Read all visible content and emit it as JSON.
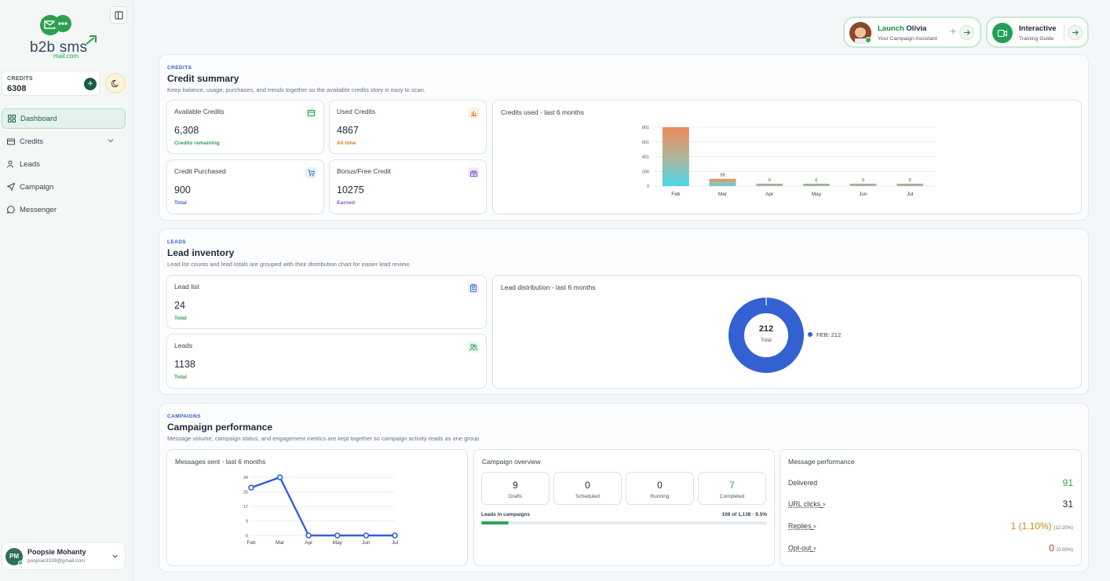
{
  "brand": {
    "name": "b2b sms",
    "sub": "mail.com"
  },
  "sidebar": {
    "credits_label": "CREDITS",
    "credits_value": "6308",
    "items": [
      {
        "label": "Dashboard",
        "icon": "grid-icon"
      },
      {
        "label": "Credits",
        "icon": "wallet-icon"
      },
      {
        "label": "Leads",
        "icon": "users-icon"
      },
      {
        "label": "Campaign",
        "icon": "send-icon"
      },
      {
        "label": "Messenger",
        "icon": "chat-icon"
      }
    ],
    "user": {
      "initials": "PM",
      "name": "Poopsie Mohanty",
      "email": "poopsie3339@gmail.com"
    }
  },
  "topbar": {
    "launch_prefix": "Launch",
    "launch_name": "Olivia",
    "launch_sub": "Your Campaign Assistant",
    "interactive_title": "Interactive",
    "interactive_sub": "Training Guide"
  },
  "credits_section": {
    "tag": "CREDITS",
    "title": "Credit summary",
    "desc": "Keep balance, usage, purchases, and trends together so the available credits story is easy to scan.",
    "cards": {
      "available": {
        "label": "Available Credits",
        "value": "6,308",
        "sub": "Credits remaining"
      },
      "used": {
        "label": "Used Credits",
        "value": "4867",
        "sub": "All time"
      },
      "purchased": {
        "label": "Credit Purchased",
        "value": "900",
        "sub": "Total"
      },
      "bonus": {
        "label": "Bonus/Free Credit",
        "value": "10275",
        "sub": "Earned"
      }
    },
    "chart_title": "Credits used - last 6 months"
  },
  "leads_section": {
    "tag": "LEADS",
    "title": "Lead inventory",
    "desc": "Lead list counts and lead totals are grouped with their distribution chart for easier lead review.",
    "cards": {
      "lead_list": {
        "label": "Lead list",
        "value": "24",
        "sub": "Total"
      },
      "leads": {
        "label": "Leads",
        "value": "1138",
        "sub": "Total"
      }
    },
    "chart_title": "Lead distribution - last 6 months",
    "donut_total": "212",
    "donut_total_label": "Total",
    "legend": "FEB: 212"
  },
  "campaigns_section": {
    "tag": "CAMPAIGNS",
    "title": "Campaign performance",
    "desc": "Message volume, campaign status, and engagement metrics are kept together so campaign activity reads as one group.",
    "messages_title": "Messages sent - last 6 months",
    "overview": {
      "title": "Campaign overview",
      "boxes": [
        {
          "value": "9",
          "label": "Drafts"
        },
        {
          "value": "0",
          "label": "Scheduled"
        },
        {
          "value": "0",
          "label": "Running"
        },
        {
          "value": "7",
          "label": "Completed"
        }
      ],
      "leads_label": "Leads in campaigns",
      "leads_value": "108 of 1,138 · 9.5%",
      "progress": 0.095
    },
    "performance": {
      "title": "Message performance",
      "rows": [
        {
          "label": "Delivered",
          "value": "91",
          "pct": ""
        },
        {
          "label": "URL clicks",
          "value": "31",
          "pct": ""
        },
        {
          "label": "Replies",
          "value": "1 (1.10%)",
          "pct": "(12.20%)"
        },
        {
          "label": "Opt-out",
          "value": "0",
          "pct": "(0.00%)"
        }
      ]
    }
  },
  "chart_data": [
    {
      "type": "bar",
      "title": "Credits used - last 6 months",
      "categories": [
        "Feb",
        "Mar",
        "Apr",
        "May",
        "Jun",
        "Jul"
      ],
      "values": [
        801,
        99,
        0,
        0,
        0,
        0
      ],
      "value_labels": [
        "",
        "99",
        "0",
        "0",
        "0",
        "0"
      ],
      "yticks": [
        "801",
        "601",
        "401",
        "200",
        "0"
      ],
      "ylim": [
        0,
        801
      ]
    },
    {
      "type": "pie",
      "title": "Lead distribution - last 6 months",
      "labels": [
        "FEB"
      ],
      "values": [
        212
      ]
    },
    {
      "type": "line",
      "title": "Messages sent - last 6 months",
      "categories": [
        "Feb",
        "Mar",
        "Apr",
        "May",
        "Jun",
        "Jul"
      ],
      "values": [
        28,
        34,
        0,
        0,
        0,
        0
      ],
      "yticks": [
        "34",
        "26",
        "17",
        "9",
        "0"
      ],
      "ylim": [
        0,
        34
      ]
    }
  ]
}
